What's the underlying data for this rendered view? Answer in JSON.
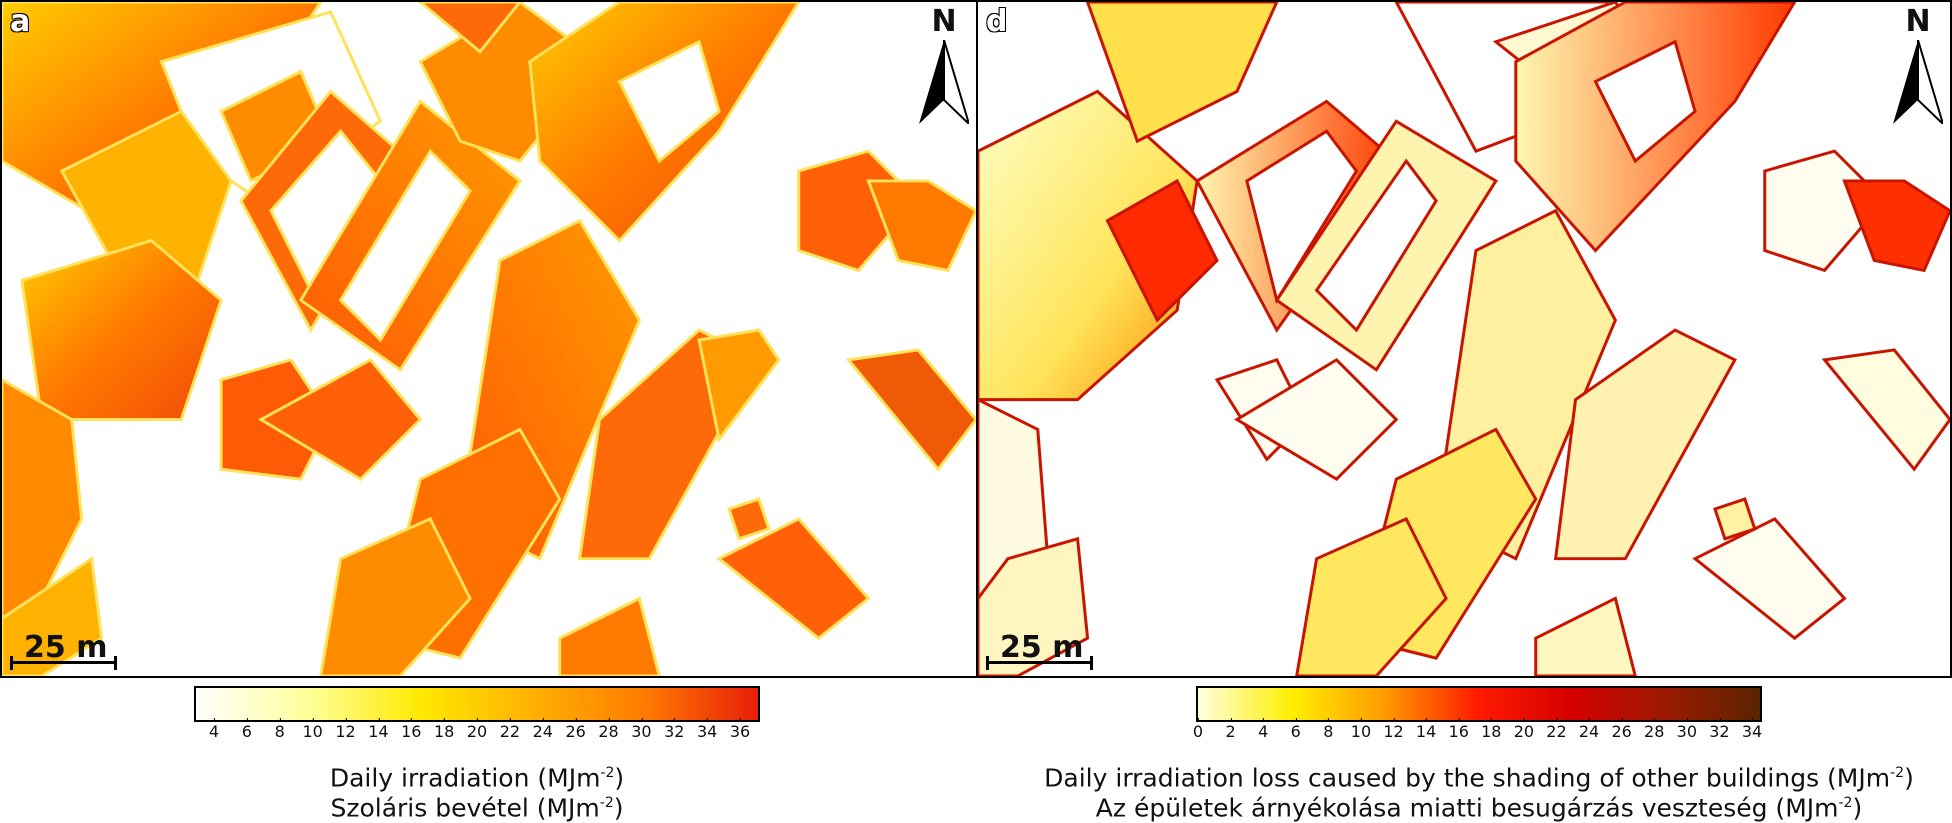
{
  "panels": {
    "a": {
      "letter": "a",
      "north": "N",
      "scale_label": "25 m"
    },
    "d": {
      "letter": "d",
      "north": "N",
      "scale_label": "25 m"
    }
  },
  "legend_a": {
    "ticks": [
      "4",
      "6",
      "8",
      "10",
      "12",
      "14",
      "16",
      "18",
      "20",
      "22",
      "24",
      "26",
      "28",
      "30",
      "32",
      "34",
      "36"
    ],
    "title_en": "Daily irradiation (MJm",
    "title_hu": "Szoláris bevétel (MJm",
    "unit_exp": "-2",
    "close": ")",
    "colors": [
      "#ffffff",
      "#ffff9a",
      "#ffe900",
      "#ffb000",
      "#ff7a00",
      "#e81e0a"
    ]
  },
  "legend_d": {
    "ticks": [
      "0",
      "2",
      "4",
      "6",
      "8",
      "10",
      "12",
      "14",
      "16",
      "18",
      "20",
      "22",
      "24",
      "26",
      "28",
      "30",
      "32",
      "34"
    ],
    "title_en": "Daily irradiation loss caused by the shading of other buildings (MJm",
    "title_hu": "Az épületek árnyékolása miatti besugárzás veszteség (MJm",
    "unit_exp": "-2",
    "close": ")",
    "colors": [
      "#ffffe0",
      "#ffee00",
      "#ff9a00",
      "#ff1a00",
      "#d40000",
      "#9a1a00",
      "#5a2400"
    ]
  }
}
